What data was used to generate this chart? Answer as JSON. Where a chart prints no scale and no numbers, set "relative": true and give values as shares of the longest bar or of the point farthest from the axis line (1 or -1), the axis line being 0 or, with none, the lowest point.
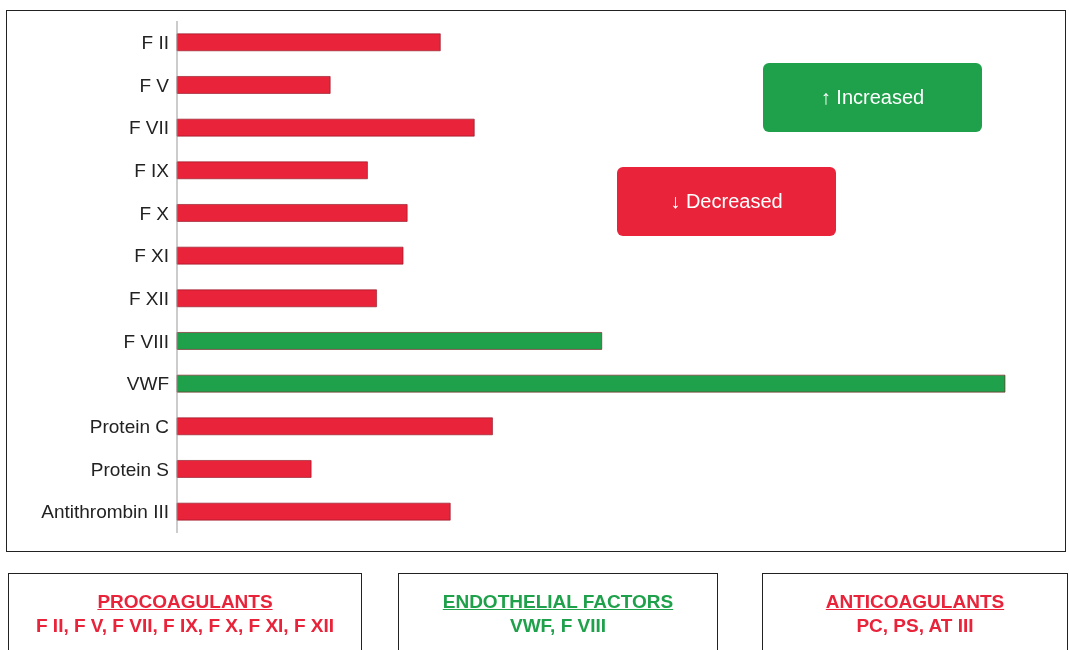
{
  "chart_data": [
    {
      "type": "bar",
      "orientation": "horizontal",
      "relative": true,
      "stacked": true,
      "legend": "top right",
      "categories": [
        "F II",
        "F V",
        "F VII",
        "F IX",
        "F X",
        "F XI",
        "F XII",
        "F VIII",
        "VWF",
        "Protein C",
        "Protein S",
        "Antithrombin III"
      ],
      "series": [
        {
          "name": "↓ Decreased",
          "color": "#e8233a",
          "values": [
            0.318,
            0.185,
            0.359,
            0.23,
            0.278,
            0.273,
            0.241,
            null,
            null,
            0.381,
            0.162,
            0.33
          ]
        },
        {
          "name": "↑ Increased",
          "color": "#1fa04a",
          "values": [
            null,
            null,
            null,
            null,
            null,
            null,
            null,
            0.513,
            1,
            null,
            null,
            null
          ]
        }
      ]
    },
    {
      "type": "other",
      "annotations": [
        "PROCOAGULANTS",
        "F II, F V, F VII, F IX, F X, F XI, F XII",
        "ENDOTHELIAL FACTORS",
        "VWF, F VIII",
        "ANTICOAGULANTS",
        "PC, PS, AT III"
      ]
    }
  ]
}
